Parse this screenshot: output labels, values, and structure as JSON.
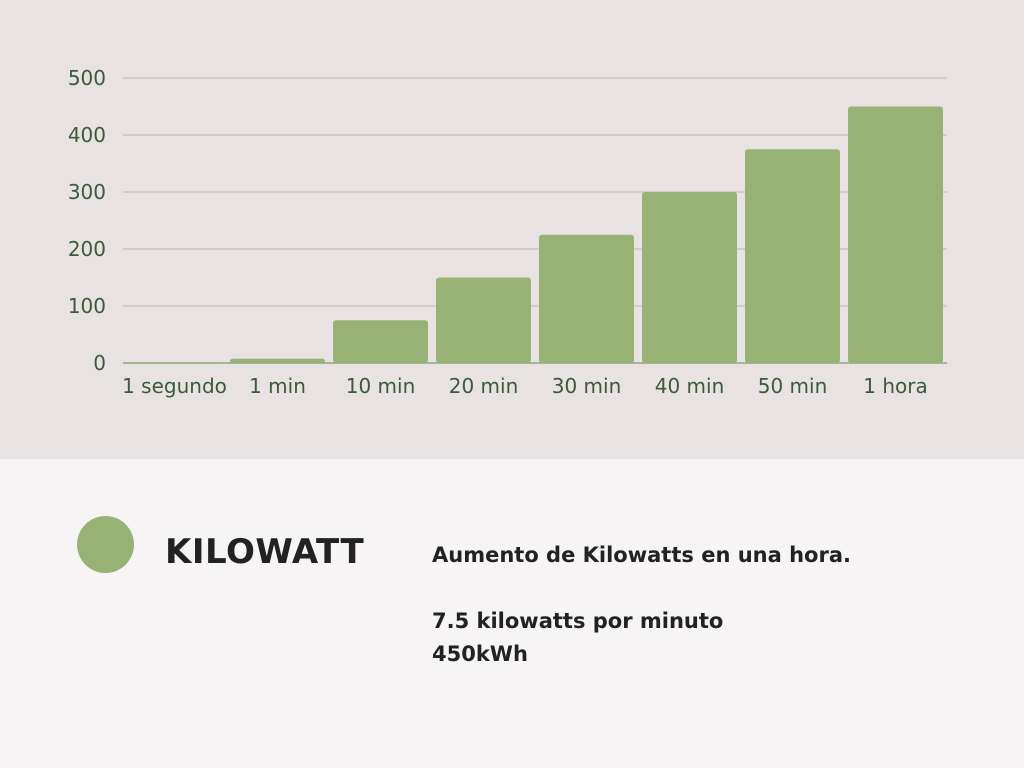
{
  "colors": {
    "bar": "#97b274",
    "top_background": "#e8e2e2",
    "bottom_background": "#f6f4f5",
    "tick_text": "#3c5a3c"
  },
  "chart_data": {
    "type": "bar",
    "categories": [
      "1 segundo",
      "1 min",
      "10 min",
      "20 min",
      "30 min",
      "40 min",
      "50 min",
      "1 hora"
    ],
    "series": [
      {
        "name": "KILOWATT",
        "values": [
          0.125,
          7.5,
          75,
          150,
          225,
          300,
          375,
          450
        ]
      }
    ],
    "yticks": [
      0,
      100,
      200,
      300,
      400,
      500
    ],
    "ylim": [
      0,
      500
    ],
    "grid": true,
    "legend_position": "bottom-left"
  },
  "legend": {
    "label": "KILOWATT"
  },
  "description": {
    "line1": "Aumento de Kilowatts en una hora.",
    "line2": "7.5 kilowatts por minuto",
    "line3": "450kWh"
  }
}
